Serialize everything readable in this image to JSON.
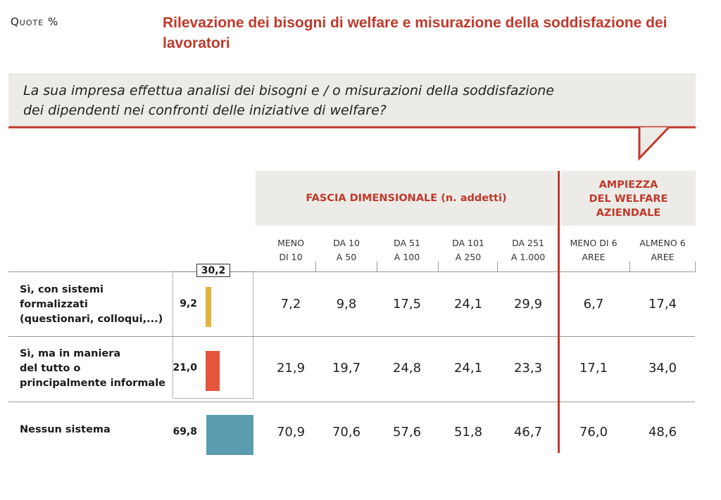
{
  "kicker": "Quote %",
  "title": "Rilevazione dei bisogni di welfare e misurazione della soddisfazione dei lavoratori",
  "question_line1": "La sua impresa effettua analisi dei bisogni e / o misurazioni della soddisfazione",
  "question_line2": "dei dipendenti nei confronti delle iniziative di welfare?",
  "group_headers": {
    "size": "FASCIA DIMENSIONALE (n. addetti)",
    "breadth_line1": "AMPIEZZA",
    "breadth_line2": "DEL WELFARE",
    "breadth_line3": "AZIENDALE"
  },
  "columns": [
    {
      "line1": "MENO",
      "line2": "DI 10"
    },
    {
      "line1": "DA 10",
      "line2": "A 50"
    },
    {
      "line1": "DA 51",
      "line2": "A 100"
    },
    {
      "line1": "DA 101",
      "line2": "A 250"
    },
    {
      "line1": "DA 251",
      "line2": "A 1.000"
    },
    {
      "line1": "MENO DI 6",
      "line2": "AREE"
    },
    {
      "line1": "ALMENO 6",
      "line2": "AREE"
    }
  ],
  "callout_total": "30,2",
  "rows": [
    {
      "label_lines": [
        "Sì, con sistemi",
        "formalizzati",
        "(questionari, colloqui,...)"
      ],
      "total": "9,2",
      "total_value": 9.2,
      "bar_color": "#e2b33f",
      "cells": [
        "7,2",
        "9,8",
        "17,5",
        "24,1",
        "29,9",
        "6,7",
        "17,4"
      ]
    },
    {
      "label_lines": [
        "Sì, ma in maniera",
        "del tutto o",
        "principalmente informale"
      ],
      "total": "21,0",
      "total_value": 21.0,
      "bar_color": "#e4573d",
      "cells": [
        "21,9",
        "19,7",
        "24,8",
        "24,1",
        "23,3",
        "17,1",
        "34,0"
      ]
    },
    {
      "label_lines": [
        "Nessun sistema"
      ],
      "total": "69,8",
      "total_value": 69.8,
      "bar_color": "#5a9bb0",
      "cells": [
        "70,9",
        "70,6",
        "57,6",
        "51,8",
        "46,7",
        "76,0",
        "48,6"
      ]
    }
  ]
}
